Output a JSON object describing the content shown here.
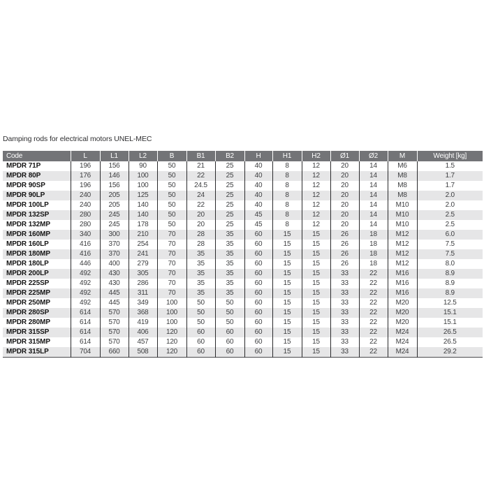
{
  "page": {
    "title": "Damping rods for electrical motors UNEL-MEC"
  },
  "colors": {
    "header_bg": "#737477",
    "header_text": "#ffffff",
    "stripe_bg": "#e6e6e7",
    "grid_line": "#2a2a2c",
    "body_text": "#3d3e40",
    "code_text": "#151515"
  },
  "table": {
    "columns": [
      "Code",
      "L",
      "L1",
      "L2",
      "B",
      "B1",
      "B2",
      "H",
      "H1",
      "H2",
      "Ø1",
      "Ø2",
      "M",
      "Weight [kg]"
    ],
    "rows": [
      [
        "MPDR 71P",
        "196",
        "156",
        "90",
        "50",
        "21",
        "25",
        "40",
        "8",
        "12",
        "20",
        "14",
        "M6",
        "1.5"
      ],
      [
        "MPDR 80P",
        "176",
        "146",
        "100",
        "50",
        "22",
        "25",
        "40",
        "8",
        "12",
        "20",
        "14",
        "M8",
        "1.7"
      ],
      [
        "MPDR 90SP",
        "196",
        "156",
        "100",
        "50",
        "24.5",
        "25",
        "40",
        "8",
        "12",
        "20",
        "14",
        "M8",
        "1.7"
      ],
      [
        "MPDR 90LP",
        "240",
        "205",
        "125",
        "50",
        "24",
        "25",
        "40",
        "8",
        "12",
        "20",
        "14",
        "M8",
        "2.0"
      ],
      [
        "MPDR 100LP",
        "240",
        "205",
        "140",
        "50",
        "22",
        "25",
        "40",
        "8",
        "12",
        "20",
        "14",
        "M10",
        "2.0"
      ],
      [
        "MPDR 132SP",
        "280",
        "245",
        "140",
        "50",
        "20",
        "25",
        "45",
        "8",
        "12",
        "20",
        "14",
        "M10",
        "2.5"
      ],
      [
        "MPDR 132MP",
        "280",
        "245",
        "178",
        "50",
        "20",
        "25",
        "45",
        "8",
        "12",
        "20",
        "14",
        "M10",
        "2.5"
      ],
      [
        "MPDR 160MP",
        "340",
        "300",
        "210",
        "70",
        "28",
        "35",
        "60",
        "15",
        "15",
        "26",
        "18",
        "M12",
        "6.0"
      ],
      [
        "MPDR 160LP",
        "416",
        "370",
        "254",
        "70",
        "28",
        "35",
        "60",
        "15",
        "15",
        "26",
        "18",
        "M12",
        "7.5"
      ],
      [
        "MPDR 180MP",
        "416",
        "370",
        "241",
        "70",
        "35",
        "35",
        "60",
        "15",
        "15",
        "26",
        "18",
        "M12",
        "7.5"
      ],
      [
        "MPDR 180LP",
        "446",
        "400",
        "279",
        "70",
        "35",
        "35",
        "60",
        "15",
        "15",
        "26",
        "18",
        "M12",
        "8.0"
      ],
      [
        "MPDR 200LP",
        "492",
        "430",
        "305",
        "70",
        "35",
        "35",
        "60",
        "15",
        "15",
        "33",
        "22",
        "M16",
        "8.9"
      ],
      [
        "MPDR 225SP",
        "492",
        "430",
        "286",
        "70",
        "35",
        "35",
        "60",
        "15",
        "15",
        "33",
        "22",
        "M16",
        "8.9"
      ],
      [
        "MPDR 225MP",
        "492",
        "445",
        "311",
        "70",
        "35",
        "35",
        "60",
        "15",
        "15",
        "33",
        "22",
        "M16",
        "8.9"
      ],
      [
        "MPDR 250MP",
        "492",
        "445",
        "349",
        "100",
        "50",
        "50",
        "60",
        "15",
        "15",
        "33",
        "22",
        "M20",
        "12.5"
      ],
      [
        "MPDR 280SP",
        "614",
        "570",
        "368",
        "100",
        "50",
        "50",
        "60",
        "15",
        "15",
        "33",
        "22",
        "M20",
        "15.1"
      ],
      [
        "MPDR 280MP",
        "614",
        "570",
        "419",
        "100",
        "50",
        "50",
        "60",
        "15",
        "15",
        "33",
        "22",
        "M20",
        "15.1"
      ],
      [
        "MPDR 315SP",
        "614",
        "570",
        "406",
        "120",
        "60",
        "60",
        "60",
        "15",
        "15",
        "33",
        "22",
        "M24",
        "26.5"
      ],
      [
        "MPDR 315MP",
        "614",
        "570",
        "457",
        "120",
        "60",
        "60",
        "60",
        "15",
        "15",
        "33",
        "22",
        "M24",
        "26.5"
      ],
      [
        "MPDR 315LP",
        "704",
        "660",
        "508",
        "120",
        "60",
        "60",
        "60",
        "15",
        "15",
        "33",
        "22",
        "M24",
        "29.2"
      ]
    ]
  }
}
